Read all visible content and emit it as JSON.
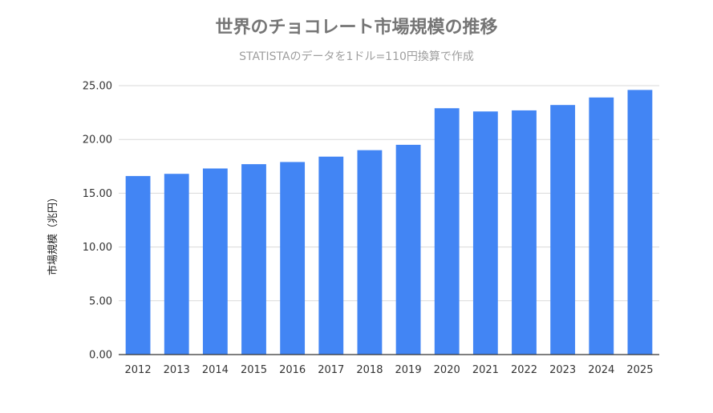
{
  "chart_data": {
    "type": "bar",
    "title": "世界のチョコレート市場規模の推移",
    "subtitle": "STATISTAのデータを1ドル=110円換算で作成",
    "xlabel": "",
    "ylabel": "市場規模（兆円）",
    "categories": [
      "2012",
      "2013",
      "2014",
      "2015",
      "2016",
      "2017",
      "2018",
      "2019",
      "2020",
      "2021",
      "2022",
      "2023",
      "2024",
      "2025"
    ],
    "series": [
      {
        "values": [
          16.6,
          16.8,
          17.3,
          17.7,
          17.9,
          18.4,
          19.0,
          19.5,
          22.9,
          22.6,
          22.7,
          23.2,
          23.9,
          24.6
        ]
      }
    ],
    "ylim": [
      0,
      25
    ],
    "yticks": [
      "0.00",
      "5.00",
      "10.00",
      "15.00",
      "20.00",
      "25.00"
    ],
    "grid": true,
    "legend": "none",
    "bar_color": "#4285f4"
  }
}
